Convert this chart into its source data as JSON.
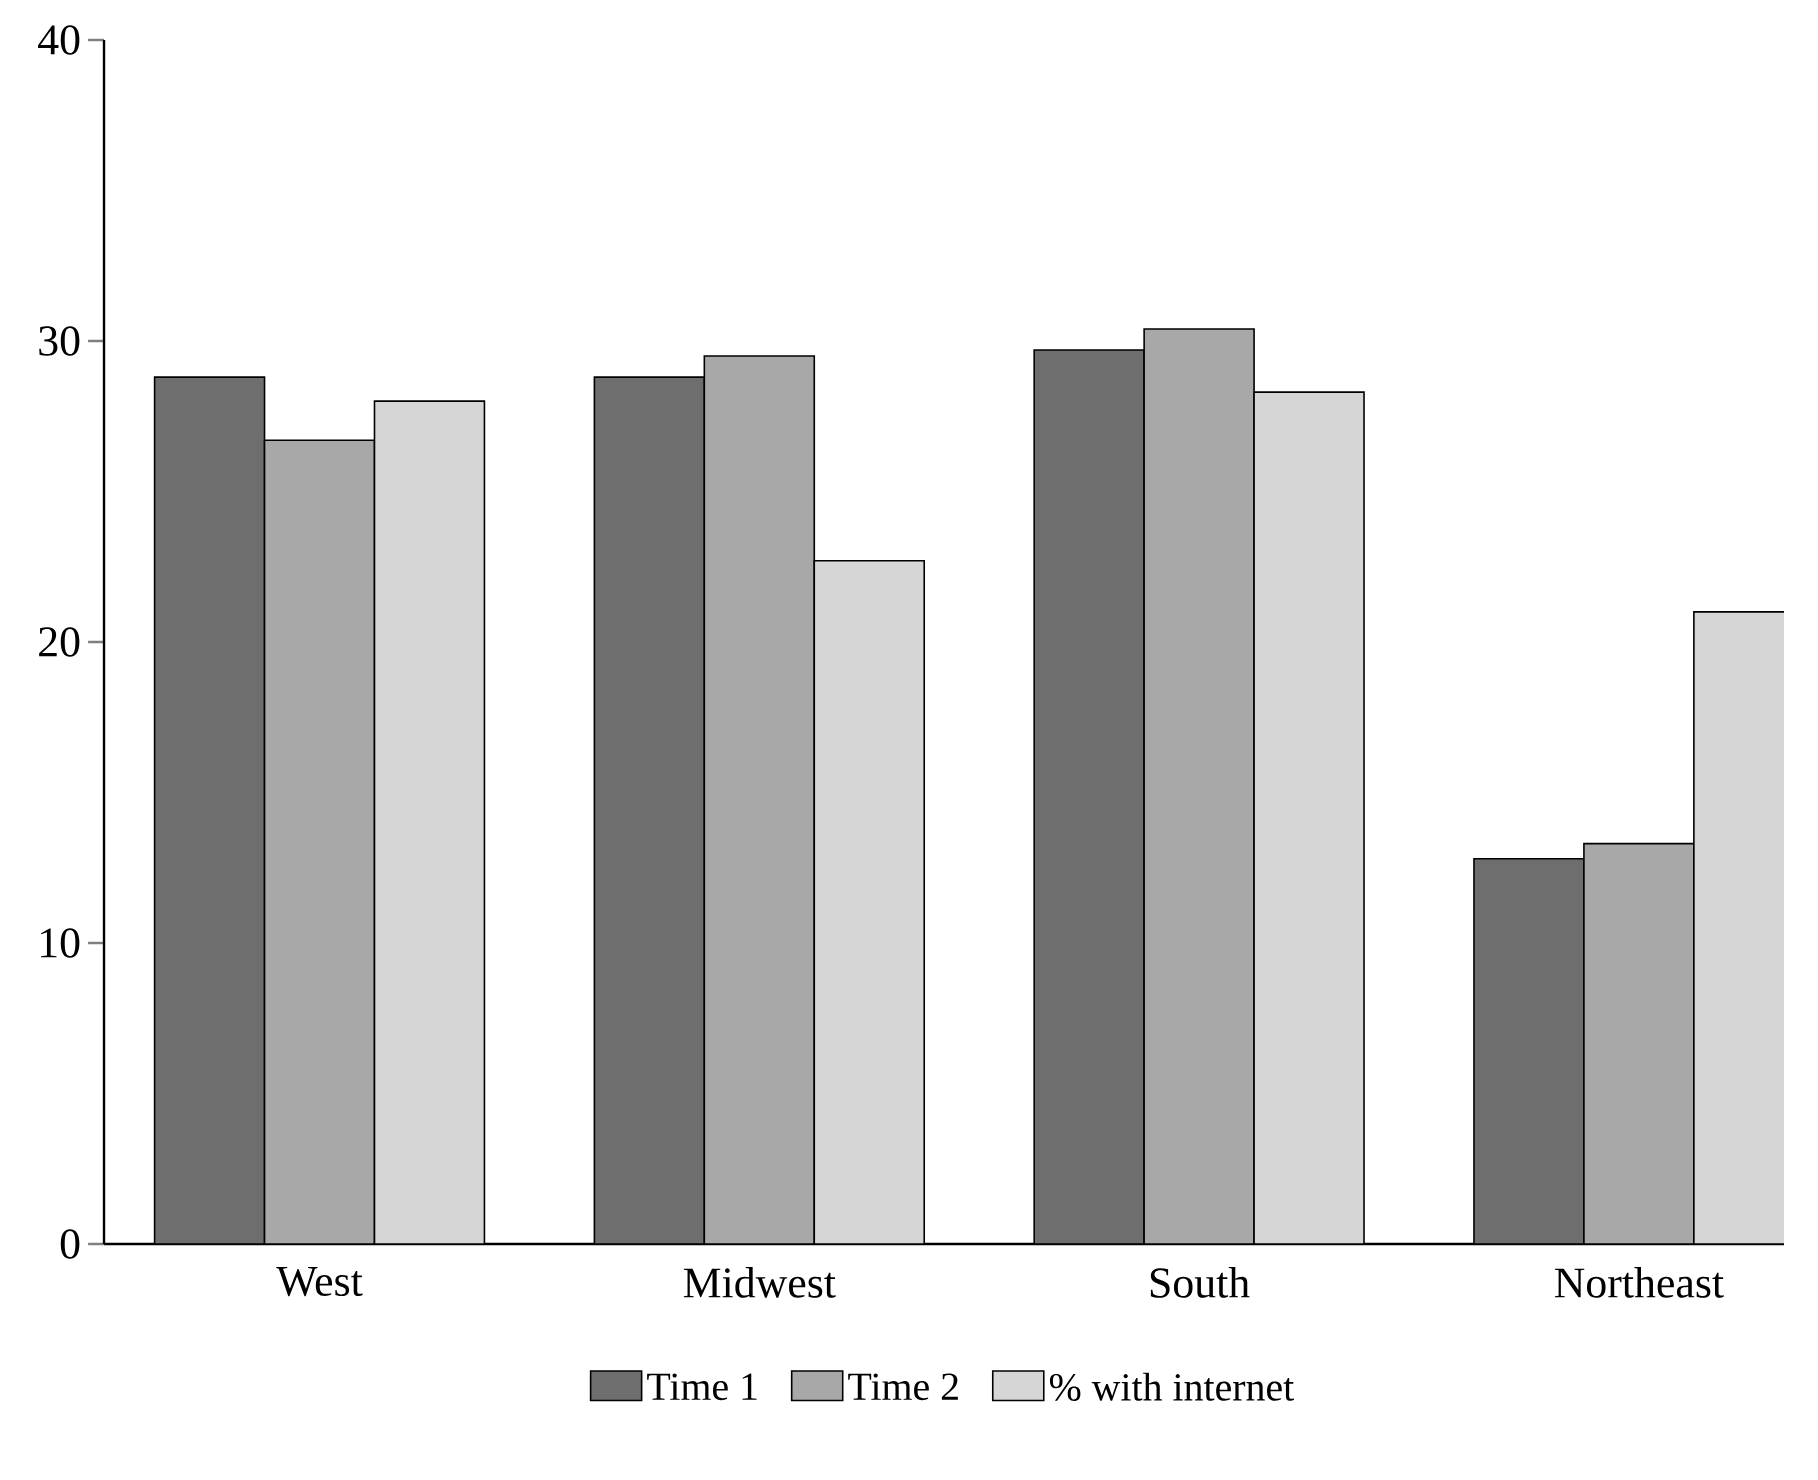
{
  "chart_data": {
    "type": "bar",
    "categories": [
      "West",
      "Midwest",
      "South",
      "Northeast"
    ],
    "series": [
      {
        "name": "Time 1",
        "color": "#6e6e6e",
        "values": [
          28.8,
          28.8,
          29.7,
          12.8
        ]
      },
      {
        "name": "Time 2",
        "color": "#a8a8a8",
        "values": [
          26.7,
          29.5,
          30.4,
          13.3
        ]
      },
      {
        "name": "% with internet",
        "color": "#d6d6d6",
        "values": [
          28.0,
          22.7,
          28.3,
          21.0
        ]
      }
    ],
    "ylim": [
      0,
      40
    ],
    "yticks": [
      0,
      10,
      20,
      30,
      40
    ],
    "grid": false,
    "legend": "bottom"
  }
}
